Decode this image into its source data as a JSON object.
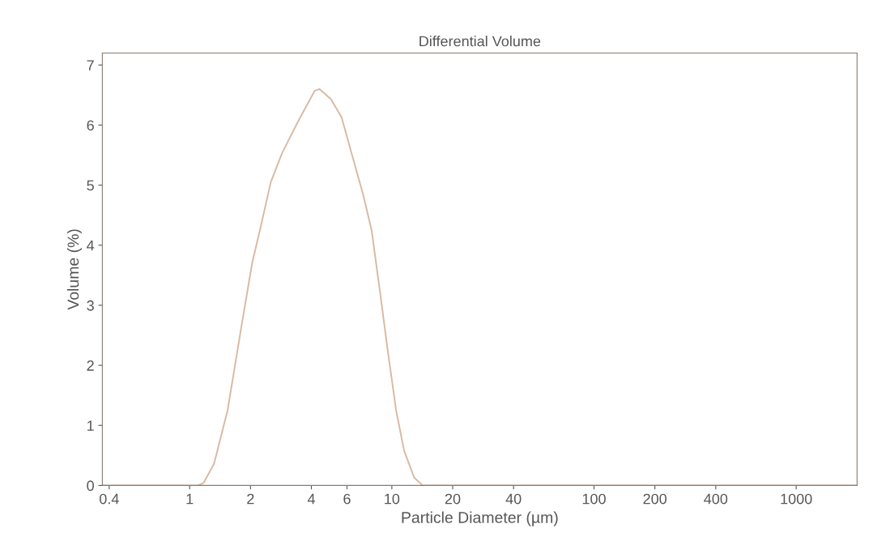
{
  "chart_data": {
    "type": "line",
    "title": "Differential Volume",
    "xlabel": "Particle Diameter (µm)",
    "ylabel": "Volume (%)",
    "log": "x",
    "xlim": [
      0.37,
      2000
    ],
    "xticks": [
      0.4,
      1,
      2,
      4,
      6,
      10,
      20,
      40,
      100,
      200,
      400,
      1000
    ],
    "ylim": [
      0,
      7.2
    ],
    "yticks": [
      0,
      1,
      2,
      3,
      4,
      5,
      6,
      7
    ],
    "series": [
      {
        "color": "#d9b9a3",
        "x": [
          0.37,
          1.1,
          1.17,
          1.32,
          1.54,
          1.81,
          2.04,
          2.24,
          2.52,
          2.87,
          3.45,
          4.15,
          4.39,
          5.0,
          5.64,
          6.36,
          7.23,
          7.94,
          8.71,
          9.55,
          10.5,
          11.5,
          12.9,
          14.2,
          2000
        ],
        "values": [
          0,
          0,
          0.04,
          0.36,
          1.25,
          2.68,
          3.71,
          4.29,
          5.05,
          5.54,
          6.07,
          6.57,
          6.6,
          6.43,
          6.13,
          5.5,
          4.83,
          4.25,
          3.26,
          2.24,
          1.25,
          0.58,
          0.13,
          0,
          0
        ]
      }
    ]
  }
}
